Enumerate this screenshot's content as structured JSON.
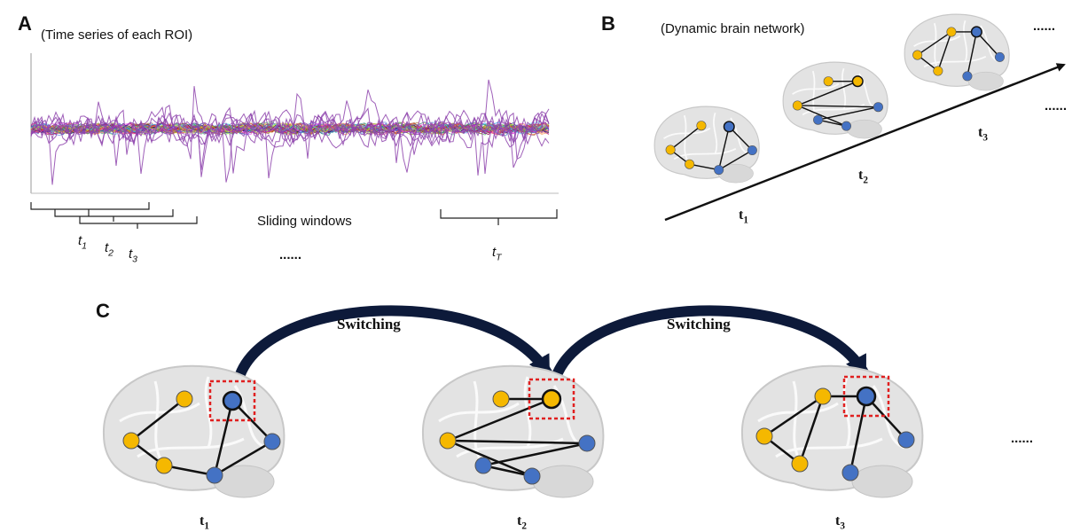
{
  "panel_a": {
    "letter": "A",
    "caption": "(Time series of each ROI)",
    "windows_label": "Sliding windows",
    "ellipsis": "......",
    "window_labels": [
      {
        "base": "t",
        "sub": "1"
      },
      {
        "base": "t",
        "sub": "2"
      },
      {
        "base": "t",
        "sub": "3"
      },
      {
        "base": "t",
        "sub": "T"
      }
    ]
  },
  "panel_b": {
    "letter": "B",
    "caption": "(Dynamic brain network)",
    "ellipses": [
      "......",
      "......"
    ],
    "time_labels": [
      {
        "base": "t",
        "sub": "1"
      },
      {
        "base": "t",
        "sub": "2"
      },
      {
        "base": "t",
        "sub": "3"
      }
    ]
  },
  "panel_c": {
    "letter": "C",
    "arrows": [
      "Switching",
      "Switching"
    ],
    "ellipsis": "......",
    "time_labels": [
      {
        "base": "t",
        "sub": "1"
      },
      {
        "base": "t",
        "sub": "2"
      },
      {
        "base": "t",
        "sub": "3"
      }
    ]
  }
}
